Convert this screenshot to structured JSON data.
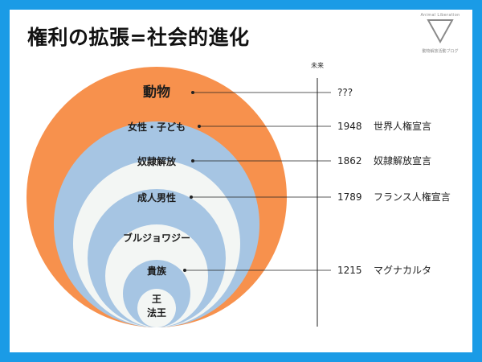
{
  "page": {
    "title": "権利の拡張=社会的進化",
    "logo_top": "Animal Liberation",
    "logo_bottom": "動物解放活動ブログ"
  },
  "colors": {
    "border": "#1a9be6",
    "outer_ring": "#f7914d",
    "blue_ring": "#a6c5e3",
    "light_ring": "#f3f6f4",
    "leader": "#222222"
  },
  "timeline": {
    "label": "未来"
  },
  "rings": [
    {
      "label": "動物",
      "fill": "outer_ring"
    },
    {
      "label": "女性・子ども",
      "fill": "blue_ring"
    },
    {
      "label": "奴隷解放",
      "fill": "light_ring"
    },
    {
      "label": "成人男性",
      "fill": "blue_ring"
    },
    {
      "label": "ブルジョワジー",
      "fill": "light_ring"
    },
    {
      "label": "貴族",
      "fill": "blue_ring"
    },
    {
      "label": "王",
      "label2": "法王",
      "fill": "light_ring"
    }
  ],
  "events": [
    {
      "year": "",
      "text": "???"
    },
    {
      "year": "1948",
      "text": "世界人権宣言"
    },
    {
      "year": "1862",
      "text": "奴隷解放宣言"
    },
    {
      "year": "1789",
      "text": "フランス人権宣言"
    },
    {
      "year": "",
      "text": ""
    },
    {
      "year": "1215",
      "text": "マグナカルタ"
    },
    {
      "year": "",
      "text": ""
    }
  ]
}
